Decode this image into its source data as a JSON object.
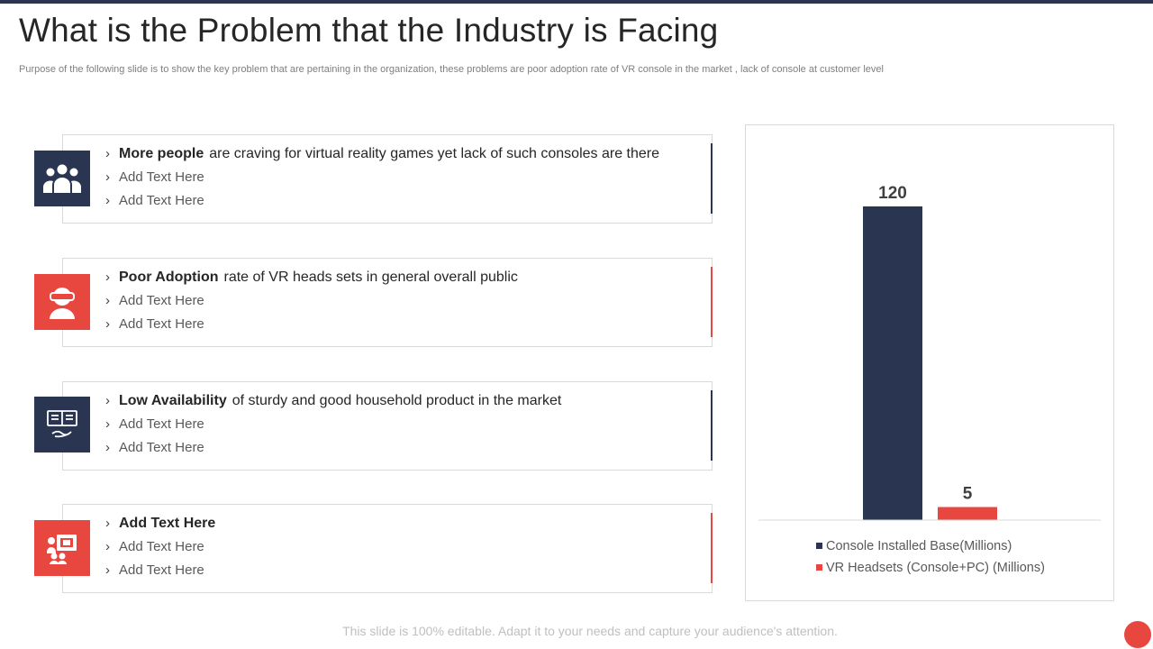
{
  "slide": {
    "title": "What is the Problem that the Industry is Facing",
    "subtitle": "Purpose of the following slide is to show the key problem that are pertaining in the organization, these problems are poor adoption rate of VR  console in the market , lack of console at customer level",
    "footer": "This slide is 100% editable. Adapt it to your needs and capture your audience's attention."
  },
  "colors": {
    "navy": "#2a3552",
    "red": "#e8473f"
  },
  "problems": [
    {
      "icon": "group-people-icon",
      "accent": "navy",
      "bold": "More people",
      "rest": "are craving for virtual reality games yet lack of such consoles are there",
      "sub1": "Add Text Here",
      "sub2": "Add Text Here"
    },
    {
      "icon": "vr-headset-user-icon",
      "accent": "red",
      "bold": "Poor Adoption",
      "rest": "rate of VR heads sets in general overall public",
      "sub1": "Add Text Here",
      "sub2": "Add Text Here"
    },
    {
      "icon": "product-hand-icon",
      "accent": "navy",
      "bold": "Low Availability",
      "rest": "of sturdy and good household product in the market",
      "sub1": "Add Text Here",
      "sub2": "Add Text Here"
    },
    {
      "icon": "presentation-users-icon",
      "accent": "red",
      "bold": "Add Text Here",
      "rest": "",
      "sub1": "Add Text Here",
      "sub2": "Add Text Here"
    }
  ],
  "chart_data": {
    "type": "bar",
    "title": "",
    "xlabel": "",
    "ylabel": "",
    "ylim": [
      0,
      120
    ],
    "grid": false,
    "legend": "bottom",
    "series": [
      {
        "name": "Console Installed Base(Millions)",
        "values": [
          120
        ],
        "color": "#2a3552",
        "label": "120"
      },
      {
        "name": "VR Headsets (Console+PC) (Millions)",
        "values": [
          5
        ],
        "color": "#e8473f",
        "label": "5"
      }
    ]
  }
}
